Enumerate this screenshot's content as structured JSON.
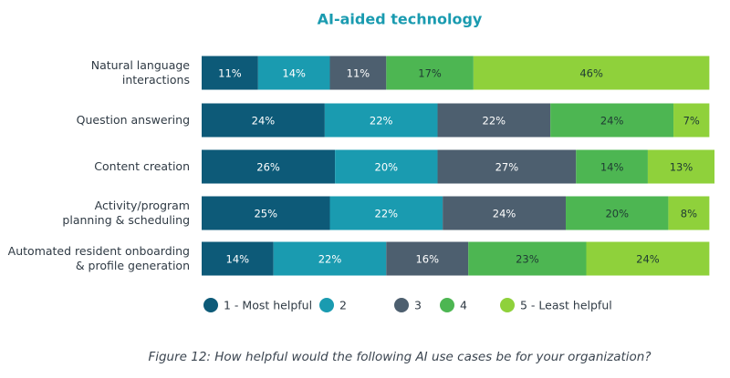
{
  "chart_data": {
    "type": "stacked-bar-horizontal",
    "title": "AI-aided technology",
    "caption": "Figure 12: How helpful would the following AI use cases be for your organization?",
    "categories": [
      "Natural language\ninteractions",
      "Question answering",
      "Content creation",
      "Activity/program\nplanning & scheduling",
      "Automated resident onboarding\n& profile generation"
    ],
    "xlim": [
      0,
      100
    ],
    "series": [
      {
        "name": "1 - Most helpful",
        "color": "#0d5a78",
        "label_color": "#ffffff",
        "values": [
          11,
          24,
          26,
          25,
          14
        ],
        "value_labels": [
          "11%",
          "24%",
          "26%",
          "25%",
          "14%"
        ]
      },
      {
        "name": "2",
        "color": "#1a9bb0",
        "label_color": "#ffffff",
        "values": [
          14,
          22,
          20,
          22,
          22
        ],
        "value_labels": [
          "14%",
          "22%",
          "20%",
          "22%",
          "22%"
        ]
      },
      {
        "name": "3",
        "color": "#4d5f6f",
        "label_color": "#ffffff",
        "values": [
          11,
          22,
          27,
          24,
          16
        ],
        "value_labels": [
          "11%",
          "22%",
          "27%",
          "24%",
          "16%"
        ]
      },
      {
        "name": "4",
        "color": "#4db652",
        "label_color": "#1f3b33",
        "values": [
          17,
          24,
          14,
          20,
          23
        ],
        "value_labels": [
          "17%",
          "24%",
          "14%",
          "20%",
          "23%"
        ]
      },
      {
        "name": "5 - Least helpful",
        "color": "#8fd13b",
        "label_color": "#1f3b33",
        "values": [
          46,
          7,
          13,
          8,
          24
        ],
        "value_labels": [
          "46%",
          "7%",
          "13%",
          "8%",
          "24%"
        ]
      }
    ]
  }
}
